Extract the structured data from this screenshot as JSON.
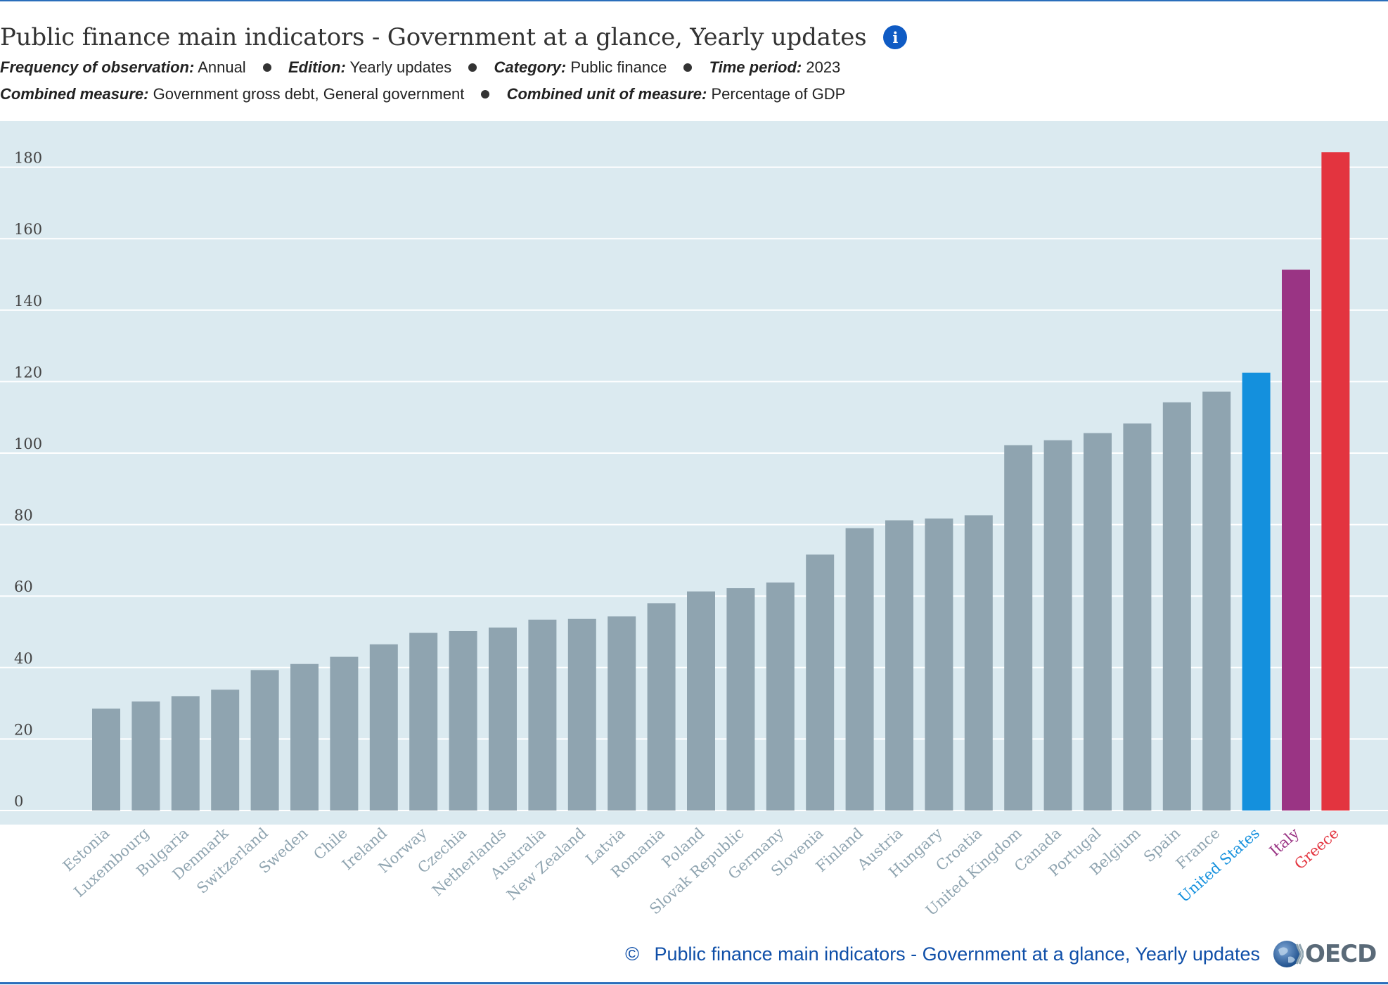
{
  "header": {
    "title": "Public finance main indicators - Government at a glance, Yearly updates",
    "info_icon": "info-icon",
    "meta_row1": [
      {
        "key": "Frequency of observation:",
        "value": "Annual"
      },
      {
        "key": "Edition:",
        "value": "Yearly updates"
      },
      {
        "key": "Category:",
        "value": "Public finance"
      },
      {
        "key": "Time period:",
        "value": "2023"
      }
    ],
    "meta_row2": [
      {
        "key": "Combined measure:",
        "value": "Government gross debt, General government"
      },
      {
        "key": "Combined unit of measure:",
        "value": "Percentage of GDP"
      }
    ]
  },
  "footer": {
    "copyright_symbol": "©",
    "source_link": "Public finance main indicators - Government at a glance, Yearly updates",
    "logo_text": "OECD",
    "logo_icon": "oecd-globe-icon"
  },
  "colors": {
    "plot_background": "#dbeaf0",
    "default_bar": "#8fa4b0",
    "default_label": "#8fa4b0",
    "highlight_us": "#1490dd",
    "highlight_italy": "#9a3484",
    "highlight_greece": "#e3343f",
    "axis_label": "#444444",
    "gridline": "#ffffff"
  },
  "chart_data": {
    "type": "bar",
    "title": "",
    "xlabel": "",
    "ylabel": "",
    "ylim": [
      0,
      185
    ],
    "yticks": [
      0,
      20,
      40,
      60,
      80,
      100,
      120,
      140,
      160,
      180
    ],
    "grid": true,
    "categories": [
      "Estonia",
      "Luxembourg",
      "Bulgaria",
      "Denmark",
      "Switzerland",
      "Sweden",
      "Chile",
      "Ireland",
      "Norway",
      "Czechia",
      "Netherlands",
      "Australia",
      "New Zealand",
      "Latvia",
      "Romania",
      "Poland",
      "Slovak Republic",
      "Germany",
      "Slovenia",
      "Finland",
      "Austria",
      "Hungary",
      "Croatia",
      "United Kingdom",
      "Canada",
      "Portugal",
      "Belgium",
      "Spain",
      "France",
      "United States",
      "Italy",
      "Greece"
    ],
    "values": [
      28.5,
      30.5,
      32,
      33.8,
      39.3,
      41,
      43,
      46.5,
      49.7,
      50.2,
      51.2,
      53.4,
      53.6,
      54.3,
      58,
      61.3,
      62.2,
      63.8,
      71.6,
      79,
      81.2,
      81.7,
      82.6,
      102.2,
      103.6,
      105.6,
      108.3,
      114.2,
      117.2,
      122.5,
      151.3,
      184.2
    ],
    "highlights": {
      "United States": "#1490dd",
      "Italy": "#9a3484",
      "Greece": "#e3343f"
    }
  }
}
